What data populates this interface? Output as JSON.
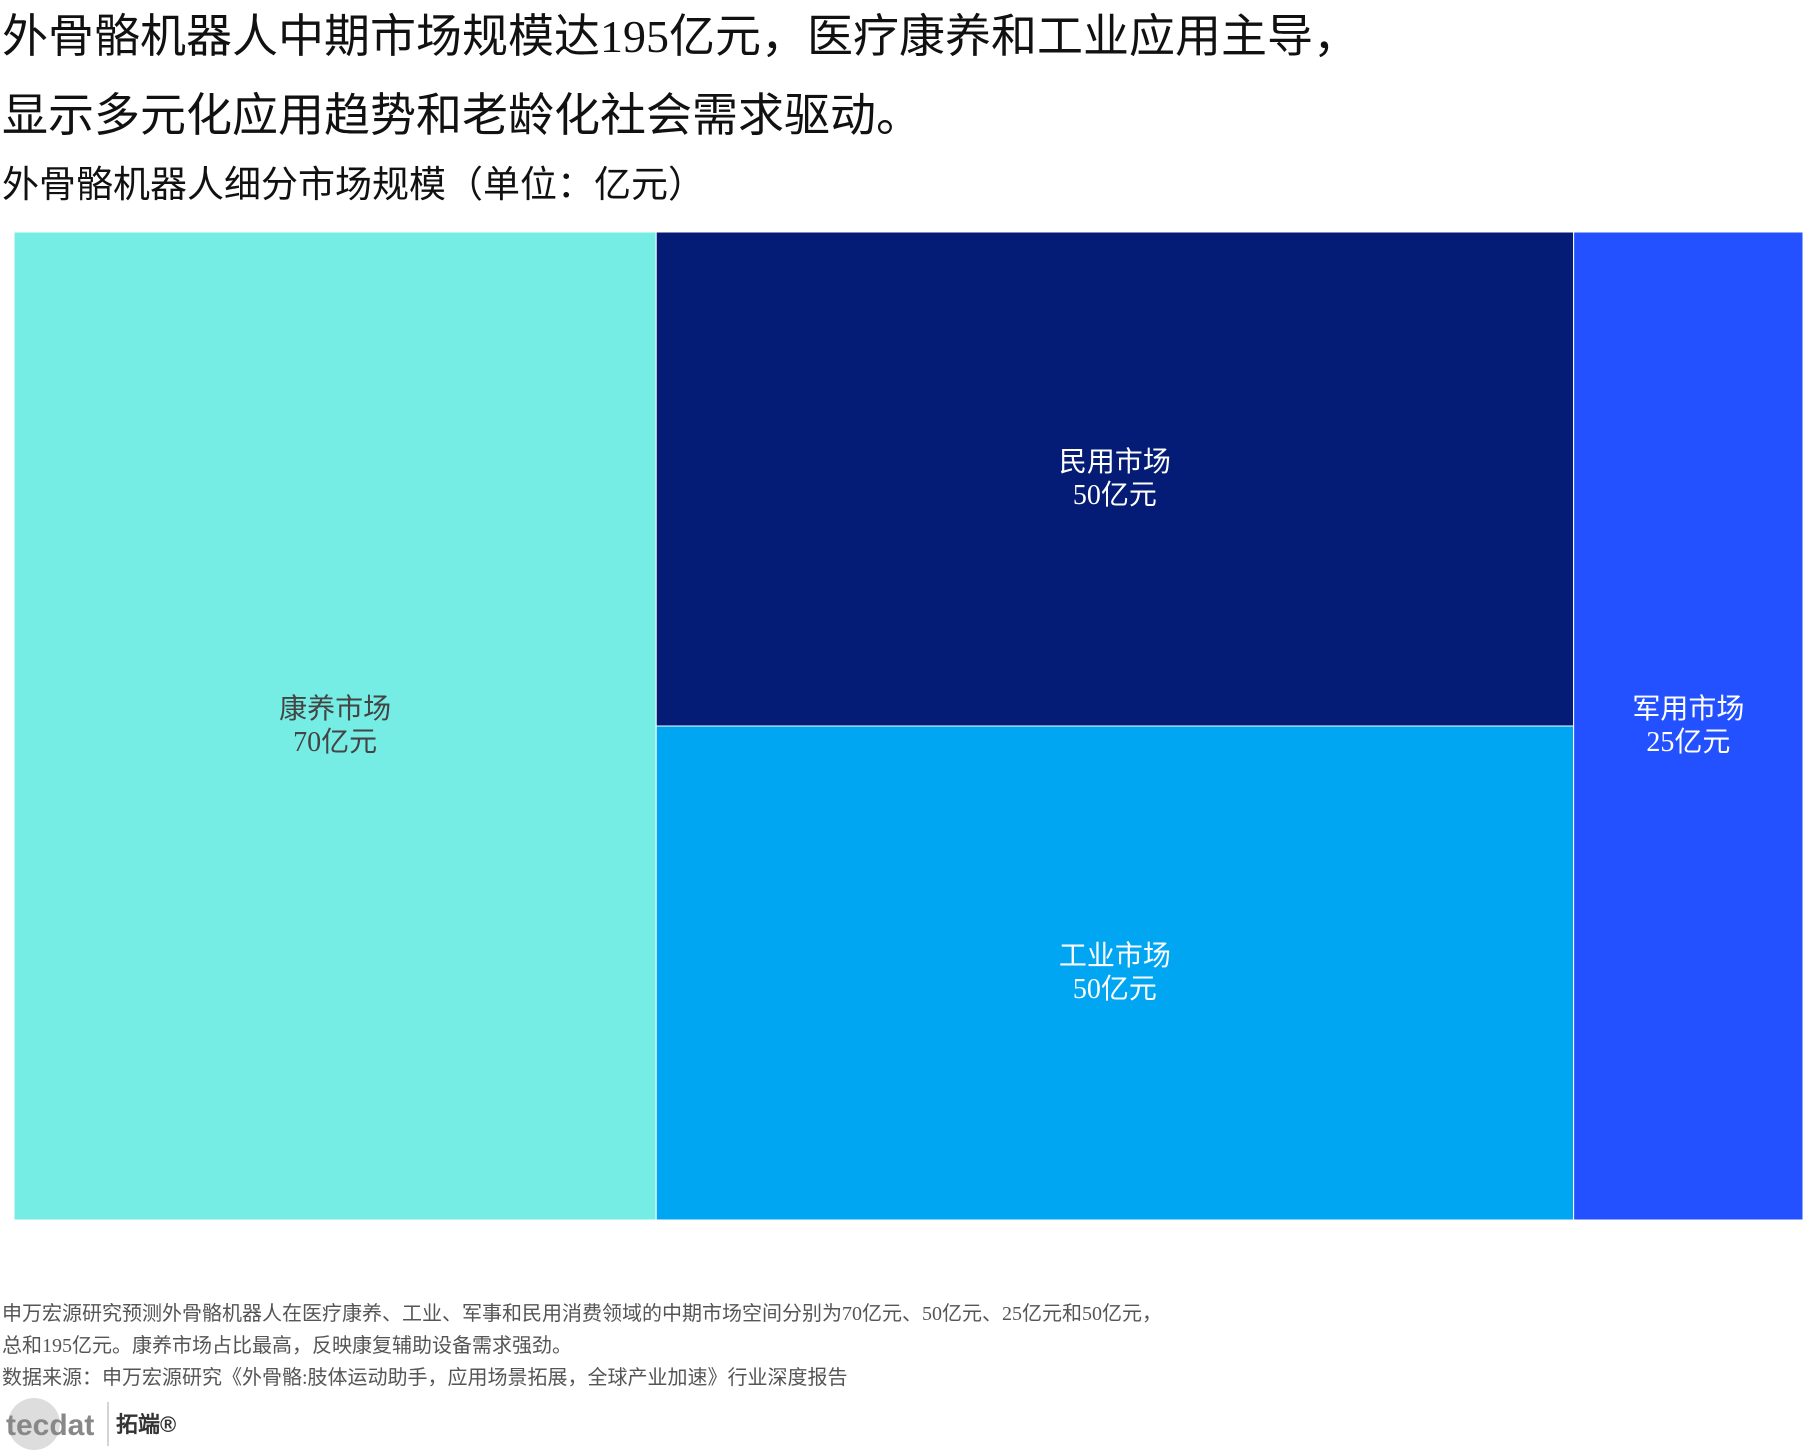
{
  "chart_data": {
    "type": "treemap",
    "title": [
      "外骨骼机器人中期市场规模达195亿元，医疗康养和工业应用主导，",
      "显示多元化应用趋势和老龄化社会需求驱动。"
    ],
    "subtitle": "外骨骼机器人细分市场规模（单位：亿元）",
    "categories": [
      "康养市场",
      "工业市场",
      "民用市场",
      "军用市场"
    ],
    "values": [
      70,
      50,
      50,
      25
    ],
    "value_labels": [
      "70亿元",
      "50亿元",
      "50亿元",
      "25亿元"
    ],
    "colors": [
      "#76ede4",
      "#00a6f2",
      "#041c75",
      "#2351ff"
    ],
    "notes": [
      "申万宏源研究预测外骨骼机器人在医疗康养、工业、军事和民用消费领域的中期市场空间分别为70亿元、50亿元、25亿元和50亿元，",
      "总和195亿元。康养市场占比最高，反映康复辅助设备需求强劲。",
      "数据来源：申万宏源研究《外骨骼:肢体运动助手，应用场景拓展，全球产业加速》行业深度报告"
    ],
    "logo": [
      "tecdat",
      "拓端®"
    ]
  }
}
